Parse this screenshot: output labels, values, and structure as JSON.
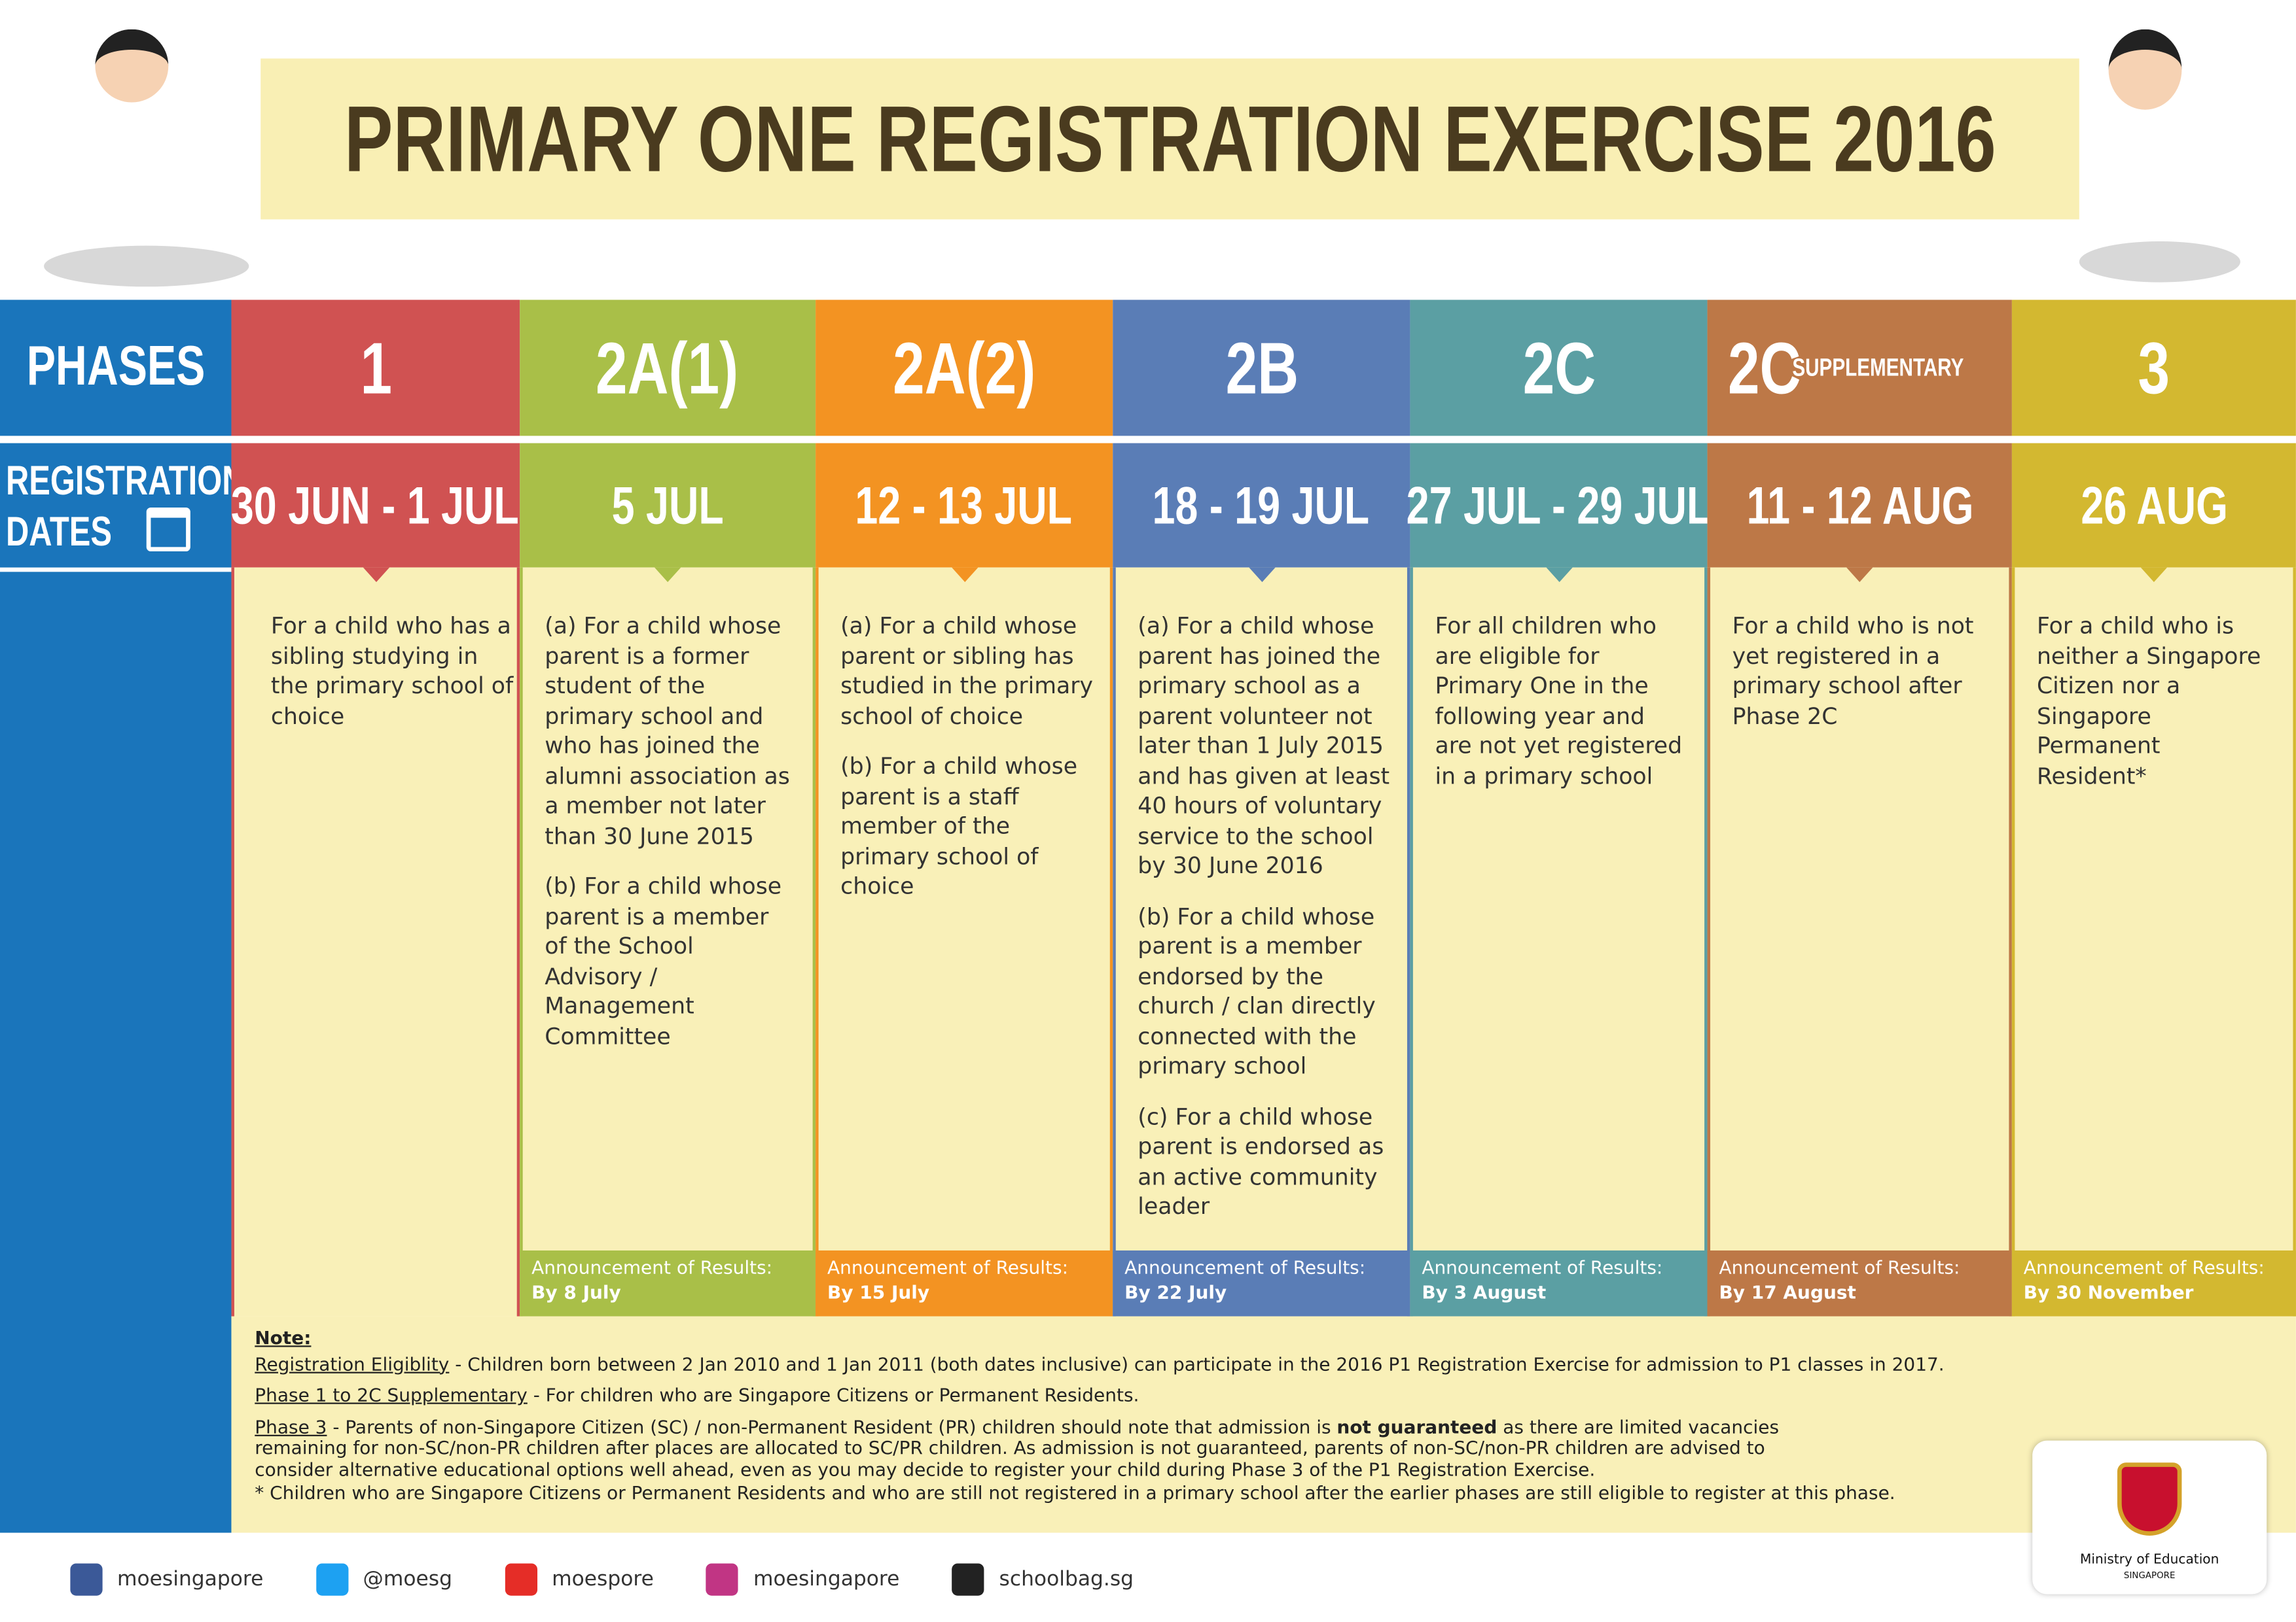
{
  "header": {
    "title": "PRIMARY ONE REGISTRATION EXERCISE 2016"
  },
  "row_labels": {
    "phases": "PHASES",
    "dates": [
      "REGISTRATION",
      "DATES"
    ]
  },
  "columns": [
    {
      "phase": "1",
      "dates": "30 JUN - 1 JUL",
      "color": "#d05252",
      "description": [
        "For a child who has a sibling studying in the primary school of choice"
      ]
    },
    {
      "phase": "2A(1)",
      "dates": "5 JUL",
      "color": "#a9bf48",
      "description": [
        "(a) For a child whose parent is a former student of the primary school and who has joined the alumni association as a member not later than 30 June 2015",
        "(b) For a child whose parent is a member of the School Advisory / Management Committee"
      ],
      "announcement": {
        "label": "Announcement of Results:",
        "date": "By 8 July"
      }
    },
    {
      "phase": "2A(2)",
      "dates": "12 - 13 JUL",
      "color": "#f39322",
      "description": [
        "(a) For a child whose parent or sibling has studied in the primary school of choice",
        "(b) For a child whose parent is a staff member of the primary school of choice"
      ],
      "announcement": {
        "label": "Announcement of Results:",
        "date": "By 15 July"
      }
    },
    {
      "phase": "2B",
      "dates": "18 - 19 JUL",
      "color": "#5a7db6",
      "description": [
        "(a) For a child whose parent has joined the primary school as a parent volunteer not later than 1 July 2015 and has given at least 40 hours of voluntary service to the school by 30 June 2016",
        "(b) For a child whose parent is a member endorsed by the church / clan directly connected with the primary school",
        "(c) For a child whose parent is endorsed as an active community leader"
      ],
      "announcement": {
        "label": "Announcement of Results:",
        "date": "By 22 July"
      }
    },
    {
      "phase": "2C",
      "dates": "27 JUL - 29 JUL",
      "color": "#5b9fa3",
      "description": [
        "For all children who are eligible for Primary One in the following year and are not yet registered in a primary school"
      ],
      "announcement": {
        "label": "Announcement of Results:",
        "date": "By 3 August"
      }
    },
    {
      "phase": "2C",
      "phase_suffix": "SUPPLEMENTARY",
      "dates": "11 - 12 AUG",
      "color": "#bd7847",
      "description": [
        "For a child who is not yet registered in a primary school after Phase 2C"
      ],
      "announcement": {
        "label": "Announcement of Results:",
        "date": "By 17 August"
      }
    },
    {
      "phase": "3",
      "dates": "26 AUG",
      "color": "#d3b830",
      "description": [
        "For a child who is neither a Singapore Citizen nor a Singapore Permanent Resident*"
      ],
      "announcement": {
        "label": "Announcement of Results:",
        "date": "By 30 November"
      }
    }
  ],
  "notes": {
    "heading": "Note:",
    "items": [
      {
        "term": "Registration Eligiblity",
        "text": " - Children born between 2 Jan 2010 and 1 Jan 2011 (both dates inclusive) can participate in the 2016 P1 Registration Exercise for admission to P1 classes in 2017."
      },
      {
        "term": "Phase 1 to 2C Supplementary",
        "text": " - For children who are Singapore Citizens or Permanent Residents."
      },
      {
        "term": "Phase 3",
        "text": " - Parents of non-Singapore Citizen (SC) / non-Permanent Resident (PR) children should note that admission is ",
        "bold": "not guaranteed",
        "text_after": " as there are limited vacancies remaining for non-SC/non-PR children after places are allocated to SC/PR children. As admission is not guaranteed, parents of non-SC/non-PR children are advised to consider alternative educational options well ahead, even as you may decide to register your child during Phase 3 of the P1 Registration Exercise."
      }
    ],
    "footnote": "* Children who are Singapore Citizens or Permanent Residents and who are still not registered in a primary school after the earlier phases are still eligible to register at this phase."
  },
  "footer": {
    "social": [
      {
        "name": "moesingapore",
        "color": "#3b5998"
      },
      {
        "name": "@moesg",
        "color": "#1da1f2"
      },
      {
        "name": "moespore",
        "color": "#e52d27"
      },
      {
        "name": "moesingapore",
        "color": "#c13584"
      },
      {
        "name": "schoolbag.sg",
        "color": "#222222"
      }
    ],
    "ministry": "Ministry of Education",
    "country": "SINGAPORE"
  }
}
